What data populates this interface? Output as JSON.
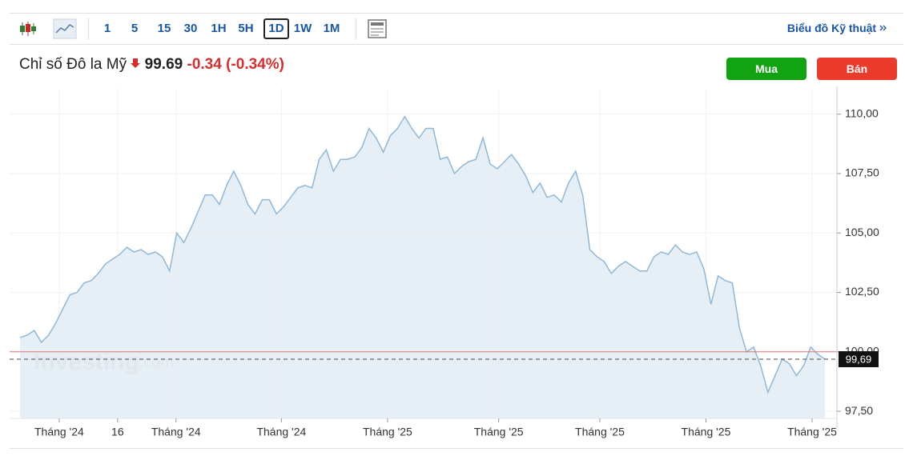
{
  "toolbar": {
    "intervals": [
      "1",
      "5",
      "15",
      "30",
      "1H",
      "5H",
      "1D",
      "1W",
      "1M"
    ],
    "active": "1D",
    "link": "Biểu đồ Kỹ thuật"
  },
  "header": {
    "name": "Chỉ số Đô la Mỹ",
    "price": "99.69",
    "change": "-0.34",
    "change_percent": "(-0.34%)"
  },
  "buttons": {
    "buy": "Mua",
    "sell": "Bán"
  },
  "chart_data": {
    "type": "area",
    "watermark": "Investing",
    "watermark_suffix": ".com",
    "series": [
      {
        "color": "#8fb8d8",
        "values": [
          100.6,
          100.7,
          100.9,
          100.4,
          100.7,
          101.2,
          101.8,
          102.4,
          102.5,
          102.9,
          103.0,
          103.3,
          103.7,
          103.9,
          104.1,
          104.4,
          104.2,
          104.3,
          104.1,
          104.2,
          104.0,
          103.4,
          105.0,
          104.6,
          105.2,
          105.9,
          106.6,
          106.6,
          106.2,
          107.0,
          107.6,
          107.0,
          106.2,
          105.8,
          106.4,
          106.4,
          105.8,
          106.1,
          106.5,
          106.9,
          107.0,
          106.9,
          108.1,
          108.5,
          107.6,
          108.1,
          108.1,
          108.2,
          108.6,
          109.4,
          109.0,
          108.4,
          109.1,
          109.4,
          109.9,
          109.4,
          109.0,
          109.4,
          109.4,
          108.1,
          108.2,
          107.5,
          107.8,
          108.0,
          108.1,
          109.0,
          107.9,
          107.7,
          108.0,
          108.3,
          107.9,
          107.4,
          106.7,
          107.1,
          106.5,
          106.6,
          106.3,
          107.1,
          107.6,
          106.6,
          104.3,
          104.0,
          103.8,
          103.3,
          103.6,
          103.8,
          103.6,
          103.4,
          103.4,
          104.0,
          104.2,
          104.1,
          104.5,
          104.2,
          104.1,
          104.2,
          103.5,
          102.0,
          103.2,
          103.0,
          102.9,
          101.0,
          100.0,
          100.2,
          99.4,
          98.3,
          99.0,
          99.7,
          99.5,
          99.0,
          99.4,
          100.2,
          99.9,
          99.69
        ]
      }
    ],
    "xlim": [
      0,
      113
    ],
    "xticks": [
      {
        "value": 5.5,
        "label": "Tháng '24"
      },
      {
        "value": 13.7,
        "label": "16"
      },
      {
        "value": 21.9,
        "label": "Tháng '24"
      },
      {
        "value": 36.7,
        "label": "Tháng '24"
      },
      {
        "value": 51.6,
        "label": "Tháng '25"
      },
      {
        "value": 67.2,
        "label": "Tháng '25"
      },
      {
        "value": 81.4,
        "label": "Tháng '25"
      },
      {
        "value": 96.3,
        "label": "Tháng '25"
      },
      {
        "value": 111.2,
        "label": "Tháng '25"
      }
    ],
    "ylim": [
      97.2,
      111.1
    ],
    "yticks": [
      {
        "value": 97.5,
        "label": "97,50"
      },
      {
        "value": 100,
        "label": "100,00"
      },
      {
        "value": 102.5,
        "label": "102,50"
      },
      {
        "value": 105,
        "label": "105,00"
      },
      {
        "value": 107.5,
        "label": "107,50"
      },
      {
        "value": 110,
        "label": "110,00"
      }
    ],
    "reference_line": {
      "value": 100,
      "color": "#e57373"
    },
    "last_value": {
      "value": 99.69,
      "label": "99,69"
    },
    "grid": true
  }
}
